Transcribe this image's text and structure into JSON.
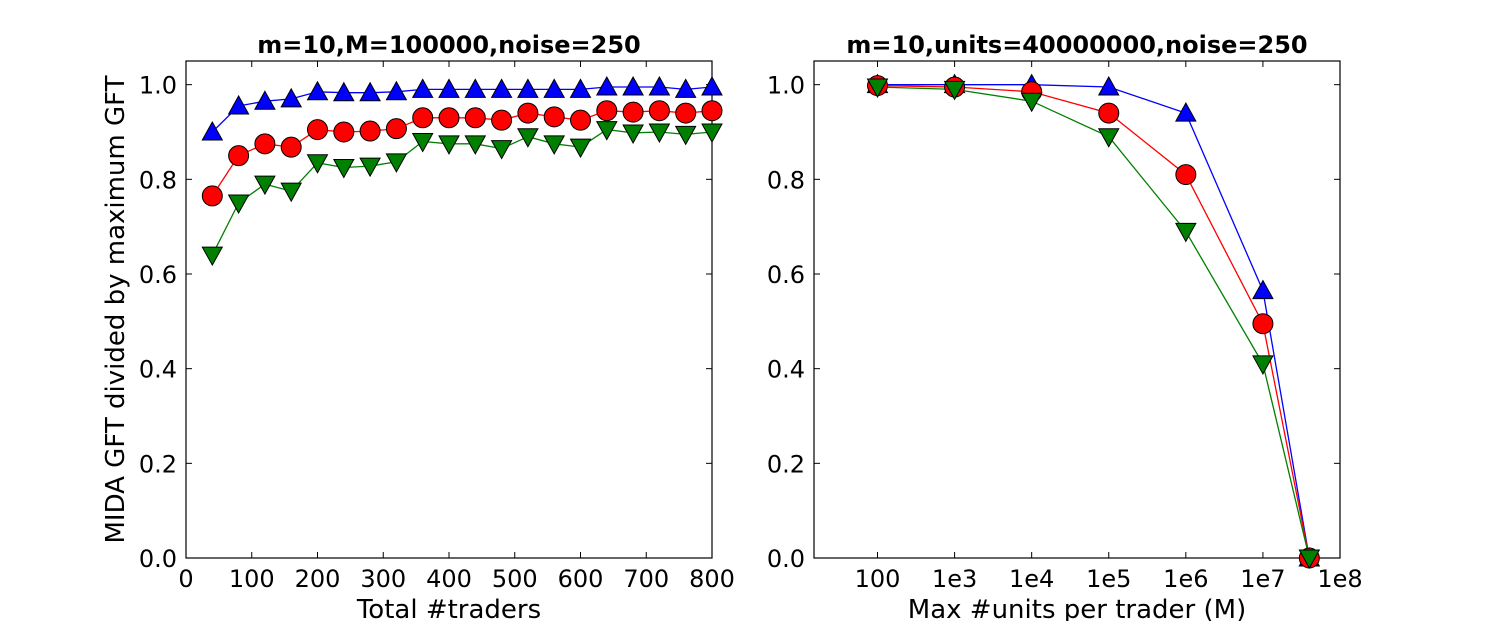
{
  "chart_data": [
    {
      "type": "line",
      "title": "m=10,M=100000,noise=250",
      "xlabel": "Total #traders",
      "ylabel": "MIDA GFT divided by maximum GFT",
      "xlim": [
        0,
        800
      ],
      "ylim": [
        0.0,
        1.05
      ],
      "xticks": [
        0,
        100,
        200,
        300,
        400,
        500,
        600,
        700,
        800
      ],
      "xtick_labels": [
        "0",
        "100",
        "200",
        "300",
        "400",
        "500",
        "600",
        "700",
        "800"
      ],
      "yticks": [
        0.0,
        0.2,
        0.4,
        0.6,
        0.8,
        1.0
      ],
      "ytick_labels": [
        "0.0",
        "0.2",
        "0.4",
        "0.6",
        "0.8",
        "1.0"
      ],
      "grid": false,
      "x": [
        40,
        80,
        120,
        160,
        200,
        240,
        280,
        320,
        360,
        400,
        440,
        480,
        520,
        560,
        600,
        640,
        680,
        720,
        760,
        800
      ],
      "series": [
        {
          "color": "#0000ff",
          "marker": "triangle-up",
          "values": [
            0.9,
            0.955,
            0.965,
            0.97,
            0.985,
            0.983,
            0.983,
            0.985,
            0.99,
            0.99,
            0.99,
            0.99,
            0.99,
            0.99,
            0.99,
            0.995,
            0.995,
            0.995,
            0.99,
            0.995
          ]
        },
        {
          "color": "#ff0000",
          "marker": "circle",
          "values": [
            0.765,
            0.85,
            0.875,
            0.868,
            0.905,
            0.9,
            0.902,
            0.907,
            0.93,
            0.93,
            0.93,
            0.925,
            0.94,
            0.932,
            0.925,
            0.945,
            0.942,
            0.945,
            0.94,
            0.945
          ]
        },
        {
          "color": "#008000",
          "marker": "triangle-down",
          "values": [
            0.64,
            0.75,
            0.79,
            0.775,
            0.835,
            0.825,
            0.828,
            0.837,
            0.88,
            0.875,
            0.875,
            0.865,
            0.89,
            0.875,
            0.868,
            0.905,
            0.898,
            0.9,
            0.895,
            0.9
          ]
        }
      ]
    },
    {
      "type": "line",
      "title": "m=10,units=40000000,noise=250",
      "xlabel": "Max #units per trader (M)",
      "ylabel": "",
      "xscale": "log",
      "xlim": [
        15,
        100000000
      ],
      "ylim": [
        0.0,
        1.05
      ],
      "xticks": [
        100,
        1000,
        10000,
        100000,
        1000000,
        10000000,
        100000000
      ],
      "xtick_labels": [
        "100",
        "1e3",
        "1e4",
        "1e5",
        "1e6",
        "1e7",
        "1e8"
      ],
      "yticks": [
        0.0,
        0.2,
        0.4,
        0.6,
        0.8,
        1.0
      ],
      "ytick_labels": [
        "0.0",
        "0.2",
        "0.4",
        "0.6",
        "0.8",
        "1.0"
      ],
      "grid": false,
      "x": [
        100,
        1000,
        10000,
        100000,
        1000000,
        10000000,
        40000000
      ],
      "series": [
        {
          "color": "#0000ff",
          "marker": "triangle-up",
          "values": [
            1.0,
            1.0,
            1.0,
            0.995,
            0.94,
            0.565,
            0.0
          ]
        },
        {
          "color": "#ff0000",
          "marker": "circle",
          "values": [
            0.998,
            0.995,
            0.985,
            0.94,
            0.81,
            0.495,
            0.0
          ]
        },
        {
          "color": "#008000",
          "marker": "triangle-down",
          "values": [
            0.995,
            0.99,
            0.965,
            0.89,
            0.69,
            0.41,
            0.0
          ]
        }
      ]
    }
  ]
}
